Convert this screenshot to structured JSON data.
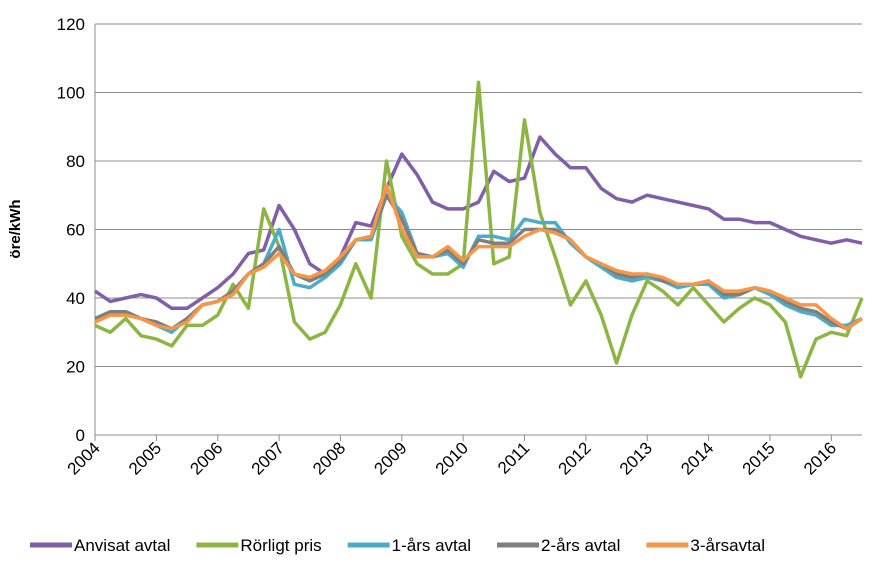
{
  "chart_data": {
    "type": "line",
    "y_label": "öre/kWh",
    "x": [
      2004,
      2004.25,
      2004.5,
      2004.75,
      2005,
      2005.25,
      2005.5,
      2005.75,
      2006,
      2006.25,
      2006.5,
      2006.75,
      2007,
      2007.25,
      2007.5,
      2007.75,
      2008,
      2008.25,
      2008.5,
      2008.75,
      2009,
      2009.25,
      2009.5,
      2009.75,
      2010,
      2010.25,
      2010.5,
      2010.75,
      2011,
      2011.25,
      2011.5,
      2011.75,
      2012,
      2012.25,
      2012.5,
      2012.75,
      2013,
      2013.25,
      2013.5,
      2013.75,
      2014,
      2014.25,
      2014.5,
      2014.75,
      2015,
      2015.25,
      2015.5,
      2015.75,
      2016,
      2016.25,
      2016.5
    ],
    "series": [
      {
        "name": "Anvisat avtal",
        "color": "#7f5fa8",
        "values": [
          42,
          39,
          40,
          41,
          40,
          37,
          37,
          40,
          43,
          47,
          53,
          54,
          67,
          60,
          50,
          47,
          52,
          62,
          61,
          72,
          82,
          76,
          68,
          66,
          66,
          68,
          77,
          74,
          75,
          87,
          82,
          78,
          78,
          72,
          69,
          68,
          70,
          69,
          68,
          67,
          66,
          63,
          63,
          62,
          62,
          60,
          58,
          57,
          56,
          57,
          56
        ]
      },
      {
        "name": "Rörligt pris",
        "color": "#8db544",
        "values": [
          32,
          30,
          34,
          29,
          28,
          26,
          32,
          32,
          35,
          44,
          37,
          66,
          55,
          33,
          28,
          30,
          38,
          50,
          40,
          80,
          58,
          50,
          47,
          47,
          50,
          103,
          50,
          52,
          92,
          65,
          52,
          38,
          45,
          35,
          21,
          35,
          45,
          42,
          38,
          43,
          38,
          33,
          37,
          40,
          38,
          33,
          17,
          28,
          30,
          29,
          40
        ]
      },
      {
        "name": "1-års avtal",
        "color": "#4bacc6",
        "values": [
          33,
          36,
          36,
          34,
          32,
          30,
          34,
          38,
          39,
          42,
          47,
          50,
          60,
          44,
          43,
          46,
          50,
          57,
          57,
          70,
          65,
          53,
          52,
          53,
          49,
          58,
          58,
          57,
          63,
          62,
          62,
          56,
          52,
          49,
          46,
          45,
          46,
          45,
          43,
          44,
          44,
          40,
          41,
          43,
          41,
          38,
          36,
          35,
          32,
          32,
          34
        ]
      },
      {
        "name": "2-års avtal",
        "color": "#7f7f7f",
        "values": [
          34,
          36,
          36,
          34,
          33,
          31,
          34,
          38,
          39,
          42,
          47,
          50,
          55,
          47,
          45,
          47,
          51,
          57,
          58,
          70,
          63,
          53,
          52,
          54,
          50,
          57,
          56,
          56,
          60,
          60,
          60,
          57,
          52,
          50,
          47,
          46,
          47,
          45,
          44,
          44,
          45,
          41,
          41,
          43,
          42,
          39,
          37,
          36,
          33,
          31,
          34
        ]
      },
      {
        "name": "3-årsavtal",
        "color": "#f79646",
        "values": [
          33,
          35,
          35,
          34,
          32,
          31,
          33,
          38,
          39,
          41,
          47,
          49,
          53,
          47,
          46,
          48,
          52,
          57,
          58,
          73,
          60,
          52,
          52,
          55,
          51,
          55,
          55,
          55,
          58,
          60,
          59,
          57,
          52,
          50,
          48,
          47,
          47,
          46,
          44,
          44,
          45,
          42,
          42,
          43,
          42,
          40,
          38,
          38,
          34,
          31,
          34
        ]
      }
    ],
    "xlim": [
      2004,
      2016.5
    ],
    "xticks": [
      2004,
      2005,
      2006,
      2007,
      2008,
      2009,
      2010,
      2011,
      2012,
      2013,
      2014,
      2015,
      2016
    ],
    "ylim": [
      0,
      120
    ],
    "yticks": [
      0,
      20,
      40,
      60,
      80,
      100,
      120
    ],
    "grid": true
  }
}
